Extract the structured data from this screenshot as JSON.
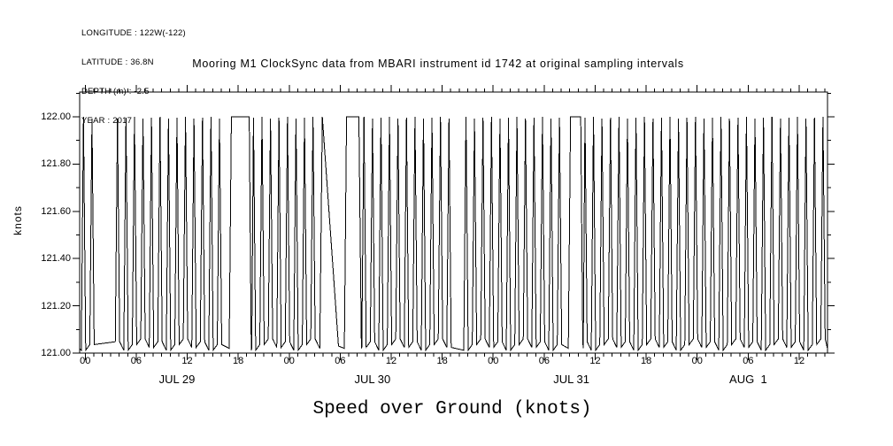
{
  "header_info": {
    "lines": [
      "LONGITUDE : 122W(-122)",
      "LATITUDE : 36.8N",
      "DEPTH (m) : -2.5",
      "YEAR : 2017"
    ]
  },
  "chart_data": {
    "type": "line",
    "title": "Mooring M1 ClockSync data from MBARI instrument id 1742 at original sampling intervals",
    "xlabel": "Speed over Ground (knots)",
    "ylabel": "knots",
    "background_color": "#ffffff",
    "line_color": "#000000",
    "grid": false,
    "legend": null,
    "y_axis": {
      "min": 121.0,
      "max": 122.105,
      "minor_tick_step": 0.1,
      "major_ticks": [
        {
          "value": 122.0,
          "label": "122.00"
        },
        {
          "value": 121.8,
          "label": "121.80"
        },
        {
          "value": 121.6,
          "label": "121.60"
        },
        {
          "value": 121.4,
          "label": "121.40"
        },
        {
          "value": 121.2,
          "label": "121.20"
        },
        {
          "value": 121.0,
          "label": "121.00"
        }
      ]
    },
    "x_axis": {
      "units": "hours since JUL 29 2017 00:00",
      "start_h": -0.65,
      "end_h": 87.33,
      "minor_tick_step_h": 1,
      "major_tick_step_h": 6,
      "hour_labels": [
        {
          "h": 0,
          "label": "00"
        },
        {
          "h": 6,
          "label": "06"
        },
        {
          "h": 12,
          "label": "12"
        },
        {
          "h": 18,
          "label": "18"
        },
        {
          "h": 24,
          "label": "00"
        },
        {
          "h": 30,
          "label": "06"
        },
        {
          "h": 36,
          "label": "12"
        },
        {
          "h": 42,
          "label": "18"
        },
        {
          "h": 48,
          "label": "00"
        },
        {
          "h": 54,
          "label": "06"
        },
        {
          "h": 60,
          "label": "12"
        },
        {
          "h": 66,
          "label": "18"
        },
        {
          "h": 72,
          "label": "00"
        },
        {
          "h": 78,
          "label": "06"
        },
        {
          "h": 84,
          "label": "12"
        }
      ],
      "date_labels": [
        {
          "label": "JUL 29",
          "center_h": 10.8
        },
        {
          "label": "JUL 30",
          "center_h": 33.8
        },
        {
          "label": "JUL 31",
          "center_h": 57.2
        },
        {
          "label": "AUG  1",
          "center_h": 78.0
        }
      ]
    },
    "series_model": {
      "description": "Dense sawtooth oscillation between ~121.0 and 122.0 knots, one tooth per hour, with occasional flat segments pinned at 122.00 and one slow linear descent",
      "baseline_knots": 121.02,
      "baseline_jitter_knots": 0.048,
      "peak_knots": 122.0,
      "tooth_period_hours": 1.0,
      "tooth_halfwidth_hours": 0.26,
      "first_tooth_center_h": -0.2,
      "gaps_h": [
        [
          2.1,
          3.1
        ],
        [
          43.6,
          44.0
        ]
      ],
      "flat_tops_at_122_h": [
        [
          17.2,
          19.3
        ],
        [
          30.75,
          32.2
        ],
        [
          57.1,
          58.3
        ]
      ],
      "ramps": [
        {
          "start_h": 27.9,
          "end_h": 29.8,
          "from_knots": 122.0,
          "to_knots": 121.03
        }
      ]
    }
  }
}
